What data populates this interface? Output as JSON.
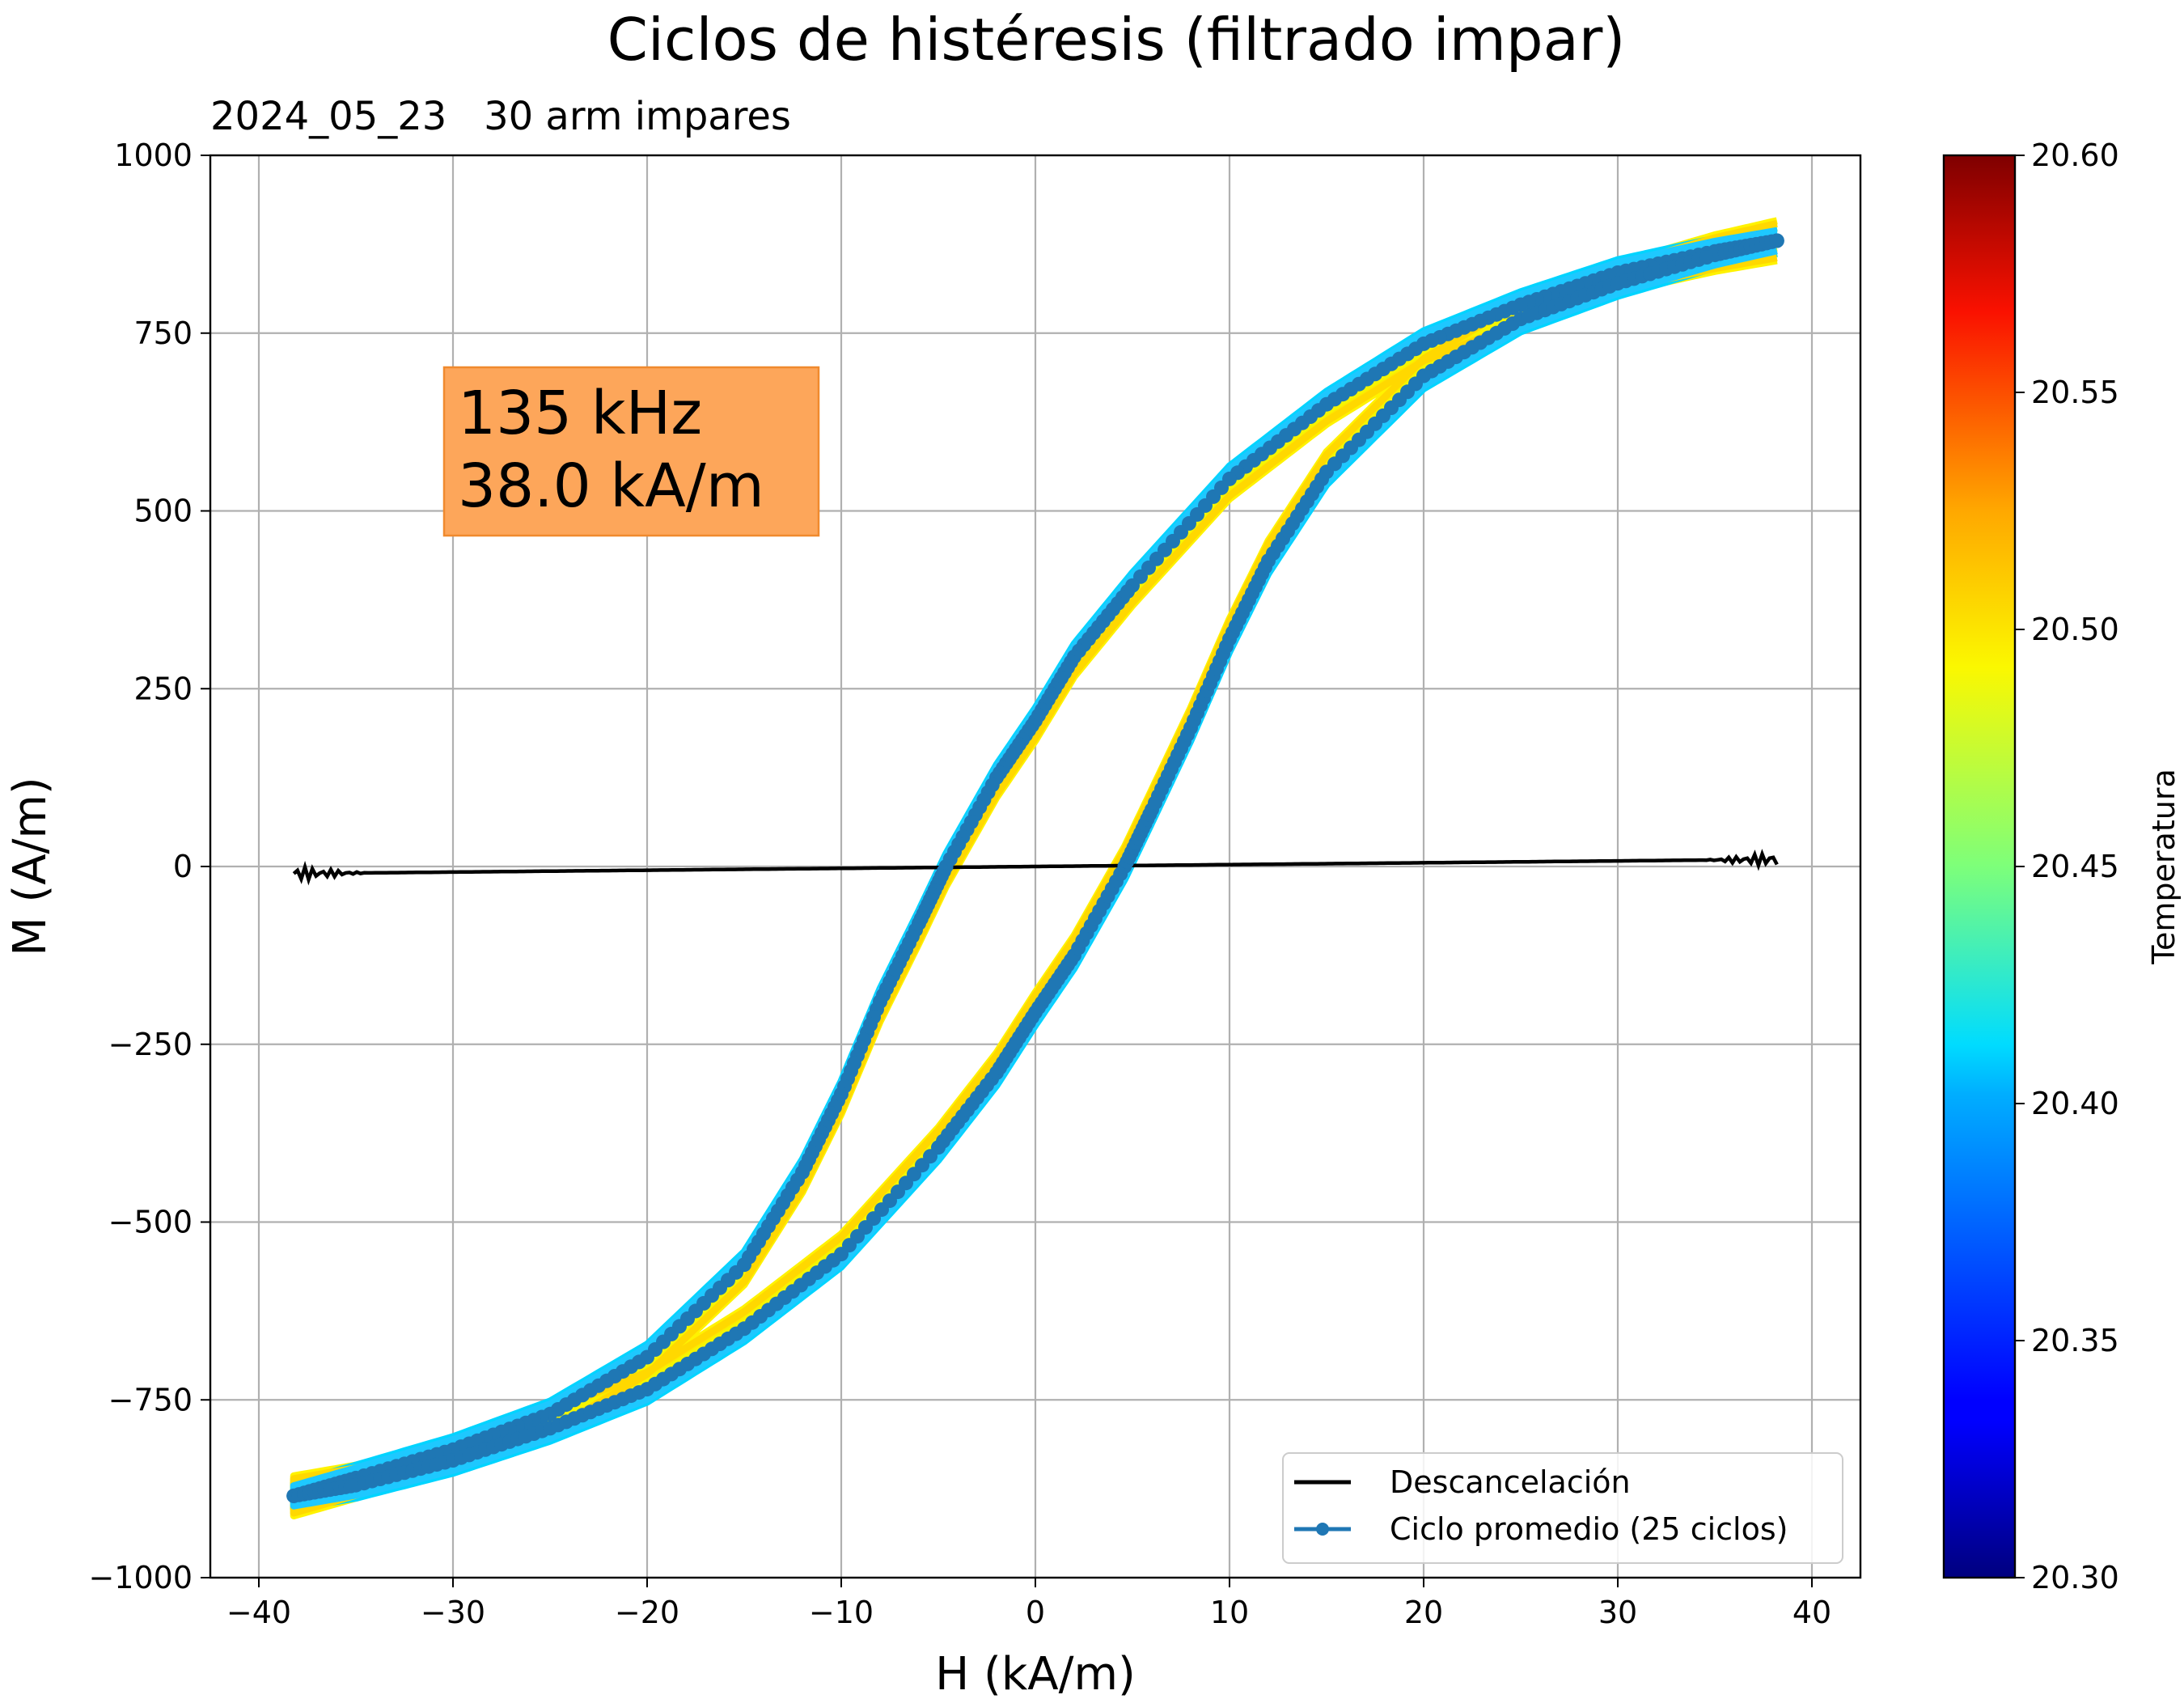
{
  "chart_data": {
    "type": "line",
    "title": "Ciclos de histéresis (filtrado impar)",
    "subtitle": "2024_05_23   30 arm impares",
    "xlabel": "H (kA/m)",
    "ylabel": "M (A/m)",
    "xlim": [
      -42.5,
      42.5
    ],
    "ylim": [
      -1000,
      1000
    ],
    "xticks": [
      -40,
      -30,
      -20,
      -10,
      0,
      10,
      20,
      30,
      40
    ],
    "xtick_labels": [
      "−40",
      "−30",
      "−20",
      "−10",
      "0",
      "10",
      "20",
      "30",
      "40"
    ],
    "yticks": [
      -1000,
      -750,
      -500,
      -250,
      0,
      250,
      500,
      750,
      1000
    ],
    "ytick_labels": [
      "−1000",
      "−750",
      "−500",
      "−250",
      "0",
      "250",
      "500",
      "750",
      "1000"
    ],
    "grid": true,
    "annotation": {
      "lines": [
        "135 kHz",
        "38.0 kA/m"
      ],
      "bg_color": "#fda65a",
      "border_color": "#f08a2e"
    },
    "legend": {
      "position": "lower-right",
      "entries": [
        {
          "label": "Descancelación",
          "color": "#000000",
          "marker": "none"
        },
        {
          "label": "Ciclo promedio (25 ciclos)",
          "color": "#1f77b4",
          "marker": "circle"
        }
      ]
    },
    "colorbar": {
      "label": "Temperatura",
      "colormap": "jet",
      "range": [
        20.3,
        20.6
      ],
      "ticks": [
        20.3,
        20.35,
        20.4,
        20.45,
        20.5,
        20.55,
        20.6
      ],
      "tick_labels": [
        "20.30",
        "20.35",
        "20.40",
        "20.45",
        "20.50",
        "20.55",
        "20.60"
      ]
    },
    "series": [
      {
        "name": "Ciclo promedio (25 ciclos)",
        "color": "#1f77b4",
        "branch_descending": {
          "x": [
            38.2,
            35,
            30,
            25,
            20,
            15,
            10,
            5,
            2,
            0,
            -2,
            -4.6,
            -6,
            -8,
            -10,
            -12,
            -15,
            -20,
            -25,
            -30,
            -35,
            -38.2
          ],
          "y": [
            880,
            865,
            835,
            790,
            735,
            650,
            545,
            395,
            295,
            205,
            125,
            0,
            -80,
            -190,
            -320,
            -430,
            -560,
            -690,
            -770,
            -820,
            -860,
            -885
          ]
        },
        "branch_ascending": {
          "x": [
            -38.2,
            -35,
            -30,
            -25,
            -20,
            -15,
            -10,
            -5,
            -2,
            0,
            2,
            4.6,
            6,
            8,
            10,
            12,
            15,
            20,
            25,
            30,
            35,
            38.2
          ],
          "y": [
            -885,
            -870,
            -835,
            -790,
            -735,
            -650,
            -545,
            -395,
            -290,
            -205,
            -125,
            0,
            80,
            195,
            320,
            430,
            555,
            690,
            770,
            820,
            860,
            880
          ]
        }
      },
      {
        "name": "Descancelación",
        "color": "#000000",
        "x": [
          -38.2,
          38.2
        ],
        "y": [
          -10,
          10
        ]
      }
    ]
  }
}
